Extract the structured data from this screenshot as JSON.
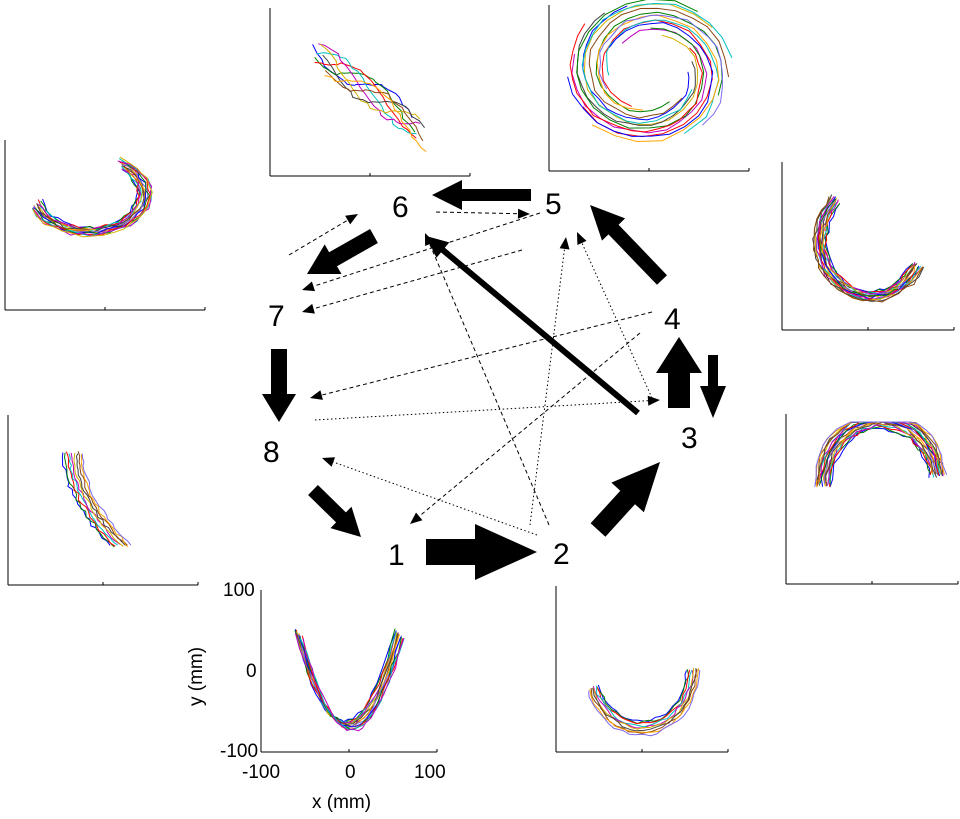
{
  "states": [
    {
      "id": "1",
      "label": "1"
    },
    {
      "id": "2",
      "label": "2"
    },
    {
      "id": "3",
      "label": "3"
    },
    {
      "id": "4",
      "label": "4"
    },
    {
      "id": "5",
      "label": "5"
    },
    {
      "id": "6",
      "label": "6"
    },
    {
      "id": "7",
      "label": "7"
    },
    {
      "id": "8",
      "label": "8"
    }
  ],
  "transitions": [
    {
      "from": "1",
      "to": "2",
      "weight": "strongest"
    },
    {
      "from": "2",
      "to": "3",
      "weight": "strong"
    },
    {
      "from": "3",
      "to": "4",
      "weight": "strong"
    },
    {
      "from": "4",
      "to": "3",
      "weight": "medium"
    },
    {
      "from": "4",
      "to": "5",
      "weight": "medium"
    },
    {
      "from": "5",
      "to": "6",
      "weight": "medium"
    },
    {
      "from": "6",
      "to": "7",
      "weight": "medium"
    },
    {
      "from": "7",
      "to": "8",
      "weight": "medium"
    },
    {
      "from": "8",
      "to": "1",
      "weight": "medium"
    },
    {
      "from": "3",
      "to": "6",
      "weight": "medium-thin"
    },
    {
      "from": "6",
      "to": "5",
      "weight": "dashed"
    },
    {
      "from": "7",
      "to": "6",
      "weight": "dashed"
    },
    {
      "from": "5",
      "to": "7",
      "weight": "dashed"
    },
    {
      "from": "5",
      "to": "7",
      "weight": "dashed"
    },
    {
      "from": "2",
      "to": "6",
      "weight": "dashed"
    },
    {
      "from": "2",
      "to": "5",
      "weight": "dotted"
    },
    {
      "from": "3",
      "to": "5",
      "weight": "dotted"
    },
    {
      "from": "4",
      "to": "8",
      "weight": "dashed"
    },
    {
      "from": "8",
      "to": "4",
      "weight": "dotted"
    },
    {
      "from": "3",
      "to": "1",
      "weight": "dashed"
    },
    {
      "from": "2",
      "to": "8",
      "weight": "dotted"
    }
  ],
  "labeled_axes": {
    "x_ticks": [
      "-100",
      "0",
      "100"
    ],
    "y_ticks": [
      "100",
      "0",
      "-100"
    ],
    "xlabel": "x (mm)",
    "ylabel": "y (mm)"
  },
  "trajectory_colors": [
    "#0000ff",
    "#008000",
    "#ff0000",
    "#00bfbf",
    "#bf00bf",
    "#d4b000",
    "#404040",
    "#8b4513",
    "#ffa500",
    "#7b68ee"
  ]
}
